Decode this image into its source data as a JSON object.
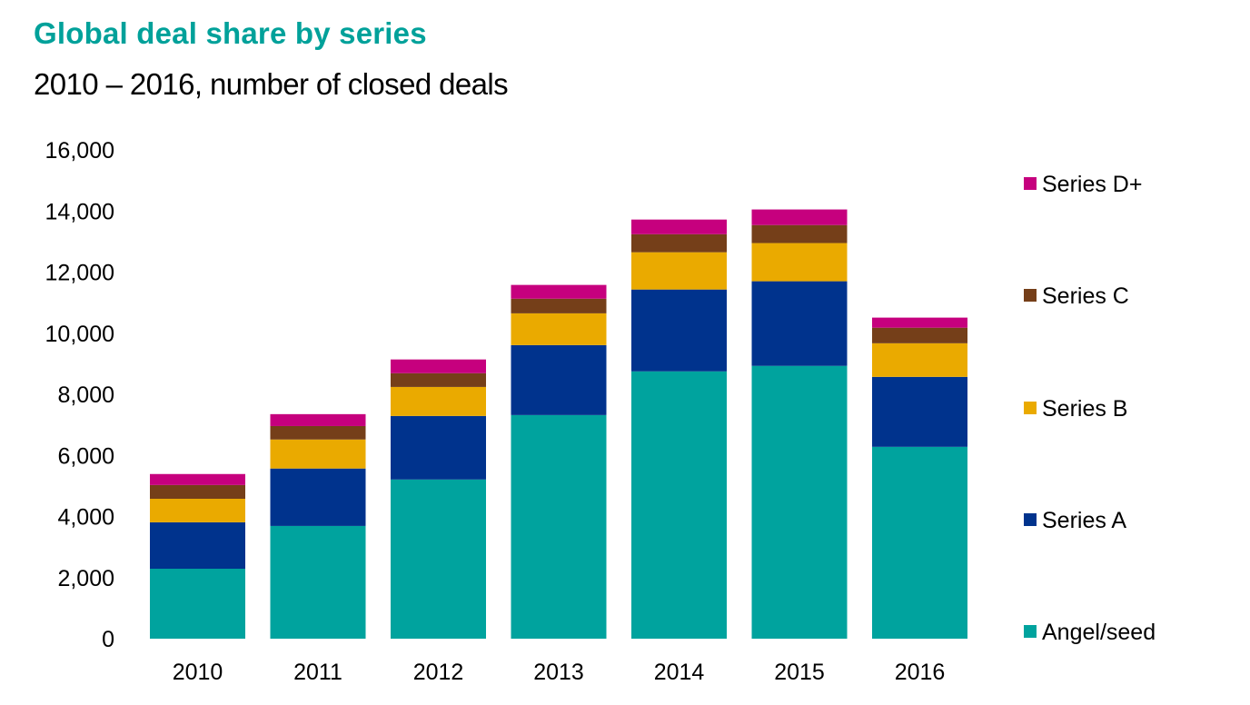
{
  "chart_data": {
    "type": "bar",
    "stacked": true,
    "title": "Global deal share by series",
    "subtitle": "2010 – 2016, number of closed deals",
    "xlabel": "",
    "ylabel": "",
    "ylim": [
      0,
      16000
    ],
    "yticks": [
      0,
      2000,
      4000,
      6000,
      8000,
      10000,
      12000,
      14000,
      16000
    ],
    "ytick_labels": [
      "0",
      "2,000",
      "4,000",
      "6,000",
      "8,000",
      "10,000",
      "12,000",
      "14,000",
      "16,000"
    ],
    "grid": false,
    "legend_position": "right",
    "categories": [
      "2010",
      "2011",
      "2012",
      "2013",
      "2014",
      "2015",
      "2016"
    ],
    "series": [
      {
        "name": "Angel/seed",
        "color": "#00a39e",
        "values": [
          2290,
          3690,
          5210,
          7320,
          8750,
          8930,
          6280
        ]
      },
      {
        "name": "Series A",
        "color": "#00338d",
        "values": [
          1520,
          1880,
          2080,
          2290,
          2680,
          2770,
          2290
        ]
      },
      {
        "name": "Series B",
        "color": "#eaaa00",
        "values": [
          770,
          950,
          950,
          1040,
          1220,
          1250,
          1100
        ]
      },
      {
        "name": "Series C",
        "color": "#753f19",
        "values": [
          450,
          440,
          450,
          480,
          590,
          590,
          510
        ]
      },
      {
        "name": "Series D+",
        "color": "#c6007e",
        "values": [
          360,
          390,
          450,
          450,
          480,
          510,
          330
        ]
      }
    ],
    "legend_order": [
      "Series D+",
      "Series C",
      "Series B",
      "Series A",
      "Angel/seed"
    ]
  }
}
